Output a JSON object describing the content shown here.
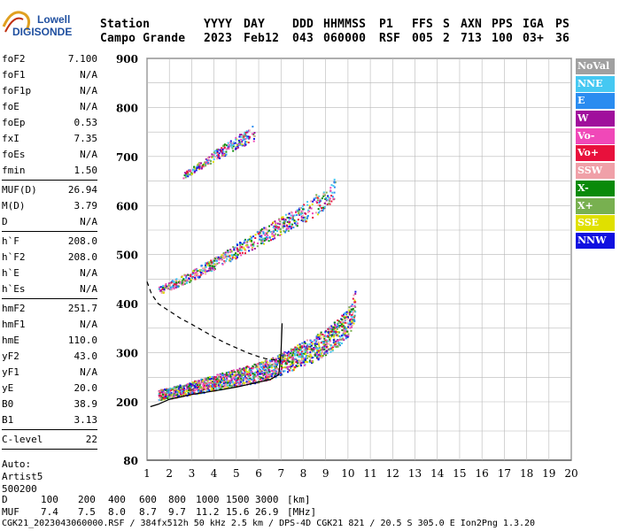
{
  "logo": {
    "line1": "Lowell",
    "line2": "DIGISONDE"
  },
  "header": {
    "row1": [
      "Station",
      "YYYY",
      "DAY",
      "DDD",
      "HHMMSS",
      "P1",
      "FFS",
      "S",
      "AXN",
      "PPS",
      "IGA",
      "PS"
    ],
    "row2": [
      "Campo Grande",
      "2023",
      "Feb12",
      "043",
      "060000",
      "RSF",
      "005",
      "2",
      "713",
      "100",
      "03+",
      "36"
    ]
  },
  "params": {
    "group1": [
      {
        "k": "foF2",
        "v": "7.100"
      },
      {
        "k": "foF1",
        "v": "N/A"
      },
      {
        "k": "foF1p",
        "v": "N/A"
      },
      {
        "k": "foE",
        "v": "N/A"
      },
      {
        "k": "foEp",
        "v": "0.53"
      },
      {
        "k": "fxI",
        "v": "7.35"
      },
      {
        "k": "foEs",
        "v": "N/A"
      },
      {
        "k": "fmin",
        "v": "1.50"
      }
    ],
    "group2": [
      {
        "k": "MUF(D)",
        "v": "26.94"
      },
      {
        "k": "M(D)",
        "v": "3.79"
      },
      {
        "k": "D",
        "v": "N/A"
      }
    ],
    "group3": [
      {
        "k": "h`F",
        "v": "208.0"
      },
      {
        "k": "h`F2",
        "v": "208.0"
      },
      {
        "k": "h`E",
        "v": "N/A"
      },
      {
        "k": "h`Es",
        "v": "N/A"
      }
    ],
    "group4": [
      {
        "k": "hmF2",
        "v": "251.7"
      },
      {
        "k": "hmF1",
        "v": "N/A"
      },
      {
        "k": "hmE",
        "v": "110.0"
      },
      {
        "k": "yF2",
        "v": "43.0"
      },
      {
        "k": "yF1",
        "v": "N/A"
      },
      {
        "k": "yE",
        "v": "20.0"
      },
      {
        "k": "B0",
        "v": "38.9"
      },
      {
        "k": "B1",
        "v": "3.13"
      }
    ],
    "group5": [
      {
        "k": "C-level",
        "v": "22"
      }
    ],
    "auto": [
      "Auto:",
      "Artist5",
      "500200"
    ]
  },
  "legend": [
    {
      "label": "NoVal",
      "color": "#a0a0a0"
    },
    {
      "label": "NNE",
      "color": "#45c8f2"
    },
    {
      "label": "E",
      "color": "#2a8cf0"
    },
    {
      "label": "W",
      "color": "#a0109c"
    },
    {
      "label": "Vo-",
      "color": "#f048b8"
    },
    {
      "label": "Vo+",
      "color": "#e8103c"
    },
    {
      "label": "SSW",
      "color": "#f0a0a8"
    },
    {
      "label": "X-",
      "color": "#0a8a0a"
    },
    {
      "label": "X+",
      "color": "#78b050"
    },
    {
      "label": "SSE",
      "color": "#e0e000"
    },
    {
      "label": "NNW",
      "color": "#1010e0"
    }
  ],
  "chart_data": {
    "type": "scatter",
    "xlim": [
      1,
      20
    ],
    "ylim": [
      80,
      900
    ],
    "x_ticks": [
      "1",
      "2",
      "3",
      "4",
      "5",
      "6",
      "7",
      "8",
      "9",
      "10",
      "11",
      "12",
      "13",
      "14",
      "15",
      "16",
      "17",
      "18",
      "19",
      "20"
    ],
    "y_ticks": [
      "900",
      "800",
      "700",
      "600",
      "500",
      "400",
      "300",
      "200",
      "80"
    ],
    "grid": true,
    "traces": {
      "o1": {
        "x": [
          1.5,
          2,
          3,
          4,
          5,
          6,
          6.5,
          7,
          7.5,
          8,
          8.5,
          9,
          9.5,
          10,
          10.3
        ],
        "y": [
          212,
          215,
          225,
          235,
          245,
          255,
          262,
          272,
          282,
          292,
          302,
          315,
          332,
          355,
          390
        ]
      },
      "o2": {
        "x": [
          1.5,
          2,
          3,
          4,
          5,
          6,
          7,
          8,
          9,
          9.4
        ],
        "y": [
          425,
          435,
          455,
          480,
          505,
          530,
          555,
          580,
          610,
          630
        ]
      },
      "o3": {
        "x": [
          2.6,
          3,
          4,
          5,
          5.8
        ],
        "y": [
          660,
          670,
          700,
          725,
          745
        ]
      }
    },
    "profile_solid": {
      "x": [
        1.15,
        1.5,
        2,
        3,
        4,
        5,
        6,
        6.5,
        6.9,
        7.0,
        7.05
      ],
      "y": [
        190,
        195,
        205,
        215,
        222,
        230,
        240,
        245,
        255,
        300,
        360
      ]
    },
    "profile_dashed": {
      "x": [
        1.0,
        1.2,
        1.5,
        2,
        2.5,
        3,
        3.5,
        4,
        4.5,
        5,
        5.5,
        6,
        6.3,
        6.6,
        7.0
      ],
      "y": [
        445,
        420,
        400,
        385,
        370,
        358,
        345,
        332,
        320,
        310,
        300,
        292,
        288,
        286,
        285
      ]
    }
  },
  "bottom": {
    "d_label": "D",
    "d_values": [
      "100",
      "200",
      "400",
      "600",
      "800",
      "1000",
      "1500",
      "3000",
      "[km]"
    ],
    "muf_label": "MUF",
    "muf_values": [
      "7.4",
      "7.5",
      "8.0",
      "8.7",
      "9.7",
      "11.2",
      "15.6",
      "26.9",
      "[MHz]"
    ]
  },
  "footer": "CGK21_2023043060000.RSF / 384fx512h 50 kHz 2.5 km / DPS-4D CGK21 821 / 20.5 S 305.0 E Ion2Png 1.3.20"
}
